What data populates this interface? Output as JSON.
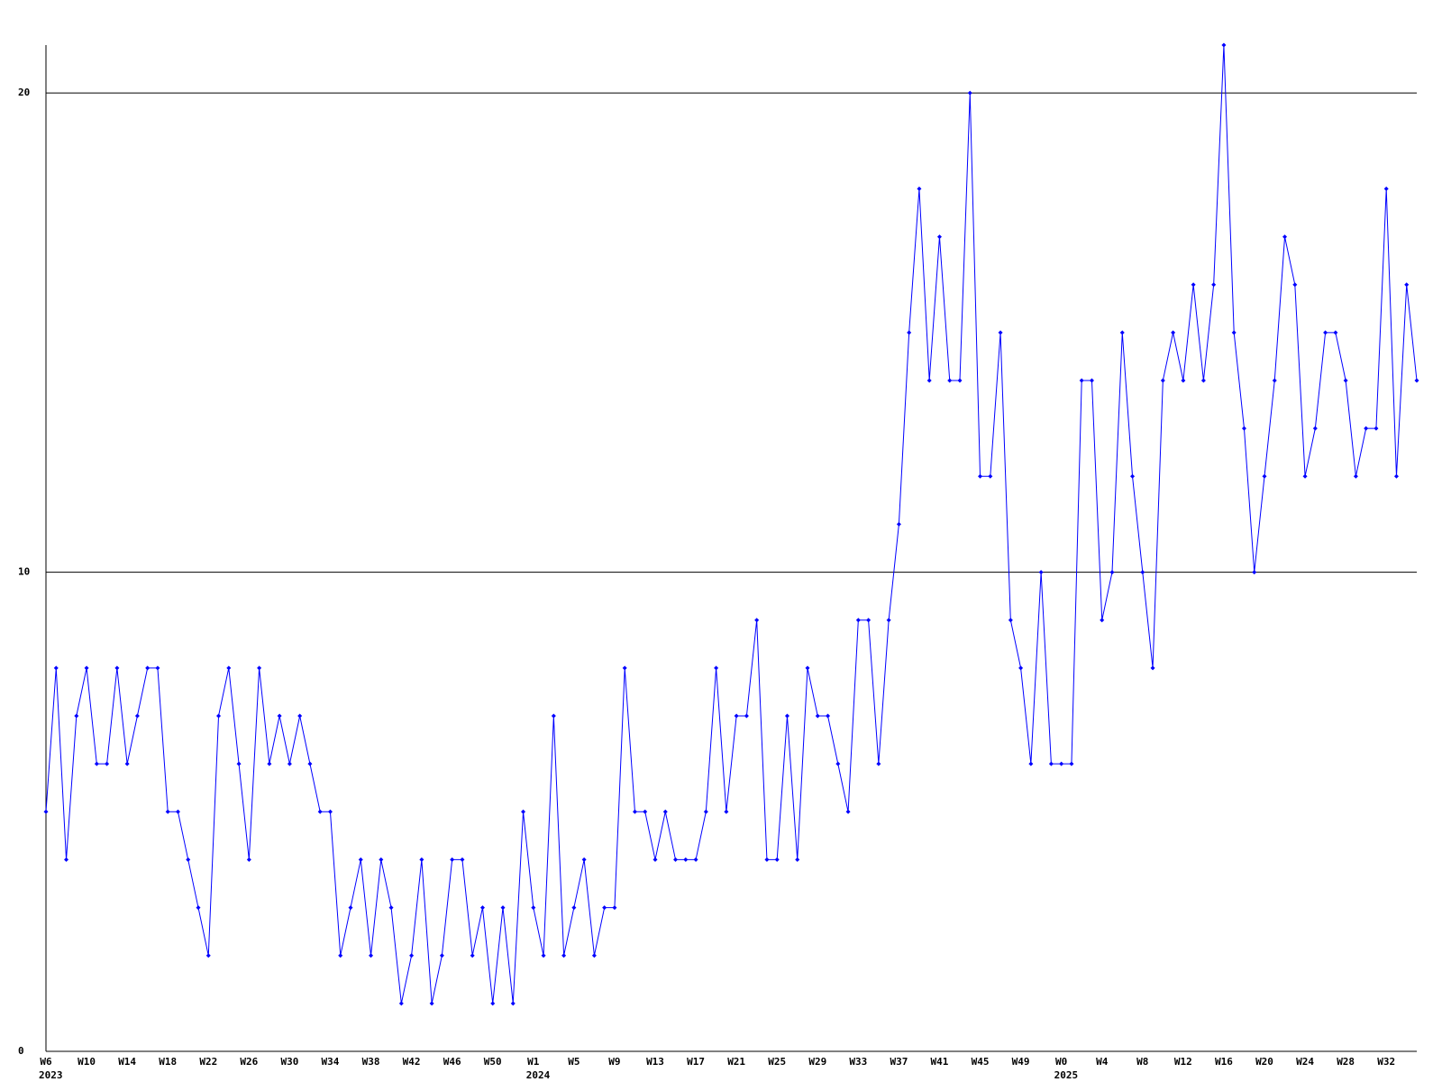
{
  "chart_data": {
    "type": "line",
    "categories": [
      "W6",
      null,
      null,
      null,
      "W10",
      null,
      null,
      null,
      "W14",
      null,
      null,
      null,
      "W18",
      null,
      null,
      null,
      "W22",
      null,
      null,
      null,
      "W26",
      null,
      null,
      null,
      "W30",
      null,
      null,
      null,
      "W34",
      null,
      null,
      null,
      "W38",
      null,
      null,
      null,
      "W42",
      null,
      null,
      null,
      "W46",
      null,
      null,
      null,
      "W50",
      null,
      null,
      null,
      "W1",
      null,
      null,
      null,
      "W5",
      null,
      null,
      null,
      "W9",
      null,
      null,
      null,
      "W13",
      null,
      null,
      null,
      "W17",
      null,
      null,
      null,
      "W21",
      null,
      null,
      null,
      "W25",
      null,
      null,
      null,
      "W29",
      null,
      null,
      null,
      "W33",
      null,
      null,
      null,
      "W37",
      null,
      null,
      null,
      "W41",
      null,
      null,
      null,
      "W45",
      null,
      null,
      null,
      "W49",
      null,
      null,
      null,
      "W0",
      null,
      null,
      null,
      "W4",
      null,
      null,
      null,
      "W8",
      null,
      null,
      null,
      "W12",
      null,
      null,
      null,
      "W16",
      null,
      null,
      null,
      "W20",
      null,
      null,
      null,
      "W24",
      null,
      null,
      null,
      "W28",
      null,
      null,
      null,
      "W32",
      null,
      null,
      null
    ],
    "category_years": [
      "2023",
      null,
      null,
      null,
      null,
      null,
      null,
      null,
      null,
      null,
      null,
      null,
      null,
      null,
      null,
      null,
      null,
      null,
      null,
      null,
      null,
      null,
      null,
      null,
      null,
      null,
      null,
      null,
      null,
      null,
      null,
      null,
      null,
      null,
      null,
      null,
      null,
      null,
      null,
      null,
      null,
      null,
      null,
      null,
      null,
      null,
      null,
      null,
      "2024",
      null,
      null,
      null,
      null,
      null,
      null,
      null,
      null,
      null,
      null,
      null,
      null,
      null,
      null,
      null,
      null,
      null,
      null,
      null,
      null,
      null,
      null,
      null,
      null,
      null,
      null,
      null,
      null,
      null,
      null,
      null,
      null,
      null,
      null,
      null,
      null,
      null,
      null,
      null,
      null,
      null,
      null,
      null,
      null,
      null,
      null,
      null,
      null,
      null,
      null,
      null,
      "2025",
      null,
      null,
      null,
      null,
      null,
      null,
      null,
      null,
      null,
      null,
      null,
      null,
      null,
      null,
      null,
      null,
      null,
      null,
      null,
      null,
      null,
      null,
      null,
      null,
      null,
      null,
      null,
      null,
      null,
      null,
      null,
      null,
      null,
      null,
      null
    ],
    "values": [
      5,
      8,
      4,
      7,
      8,
      6,
      6,
      8,
      6,
      7,
      8,
      8,
      5,
      5,
      4,
      3,
      2,
      7,
      8,
      6,
      4,
      8,
      6,
      7,
      6,
      7,
      6,
      5,
      5,
      2,
      3,
      4,
      2,
      4,
      3,
      1,
      2,
      4,
      1,
      2,
      4,
      4,
      2,
      3,
      1,
      3,
      1,
      5,
      3,
      2,
      7,
      2,
      3,
      4,
      2,
      3,
      3,
      8,
      5,
      5,
      4,
      5,
      4,
      4,
      4,
      5,
      8,
      5,
      7,
      7,
      9,
      4,
      4,
      7,
      4,
      8,
      7,
      7,
      6,
      5,
      9,
      9,
      6,
      9,
      11,
      15,
      18,
      14,
      17,
      14,
      14,
      20,
      12,
      12,
      15,
      9,
      8,
      6,
      10,
      6,
      6,
      6,
      14,
      14,
      9,
      10,
      15,
      12,
      10,
      8,
      14,
      15,
      14,
      16,
      14,
      16,
      21,
      15,
      13,
      10,
      12,
      14,
      17,
      16,
      12,
      13,
      15,
      15,
      14,
      12,
      13,
      13,
      18,
      12,
      16,
      14
    ],
    "color": "#0000ff",
    "ylim": [
      0,
      21
    ],
    "yticks": [
      0,
      10,
      20
    ],
    "grid": true
  }
}
